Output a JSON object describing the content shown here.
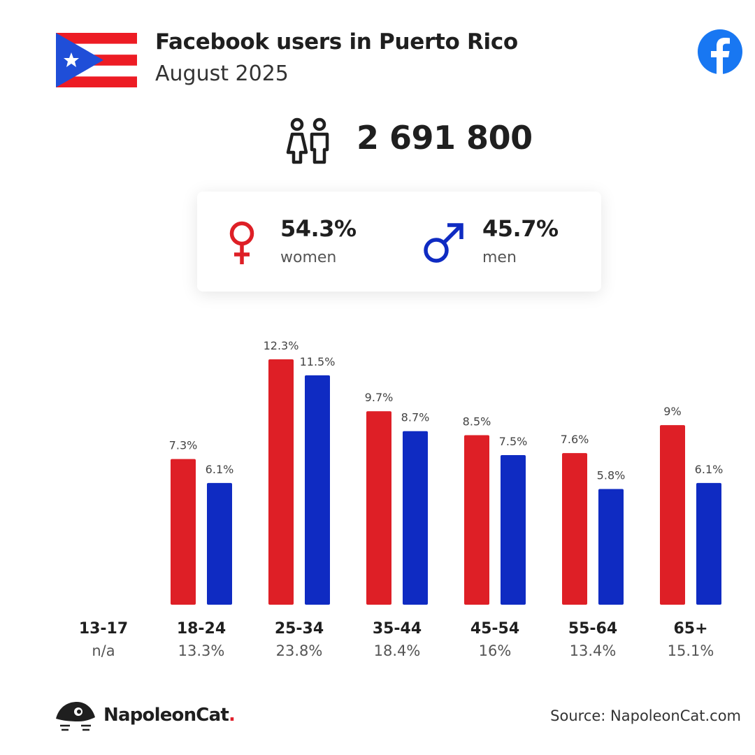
{
  "header": {
    "title": "Facebook users in Puerto Rico",
    "subtitle": "August 2025"
  },
  "total_users": "2 691 800",
  "gender": {
    "women_pct": "54.3%",
    "women_label": "women",
    "men_pct": "45.7%",
    "men_label": "men"
  },
  "colors": {
    "women": "#de1f26",
    "men": "#0f2bc2",
    "facebook": "#1877f2"
  },
  "icons": [
    "puerto-rico-flag-icon",
    "facebook-icon",
    "users-icon",
    "female-symbol-icon",
    "male-symbol-icon",
    "napoleoncat-logo-icon"
  ],
  "chart_data": {
    "type": "bar",
    "categories": [
      "13-17",
      "18-24",
      "25-34",
      "35-44",
      "45-54",
      "55-64",
      "65+"
    ],
    "category_totals": [
      "n/a",
      "13.3%",
      "23.8%",
      "18.4%",
      "16%",
      "13.4%",
      "15.1%"
    ],
    "series": [
      {
        "values": [
          null,
          7.3,
          12.3,
          9.7,
          8.5,
          7.6,
          9.0
        ],
        "labels": [
          "",
          "7.3%",
          "12.3%",
          "9.7%",
          "8.5%",
          "7.6%",
          "9%"
        ]
      },
      {
        "values": [
          null,
          6.1,
          11.5,
          8.7,
          7.5,
          5.8,
          6.1
        ],
        "labels": [
          "",
          "6.1%",
          "11.5%",
          "8.7%",
          "7.5%",
          "5.8%",
          "6.1%"
        ]
      }
    ],
    "ylim": [
      0,
      12.3
    ],
    "grid": false
  },
  "footer": {
    "brand": "NapoleonCat",
    "brand_dot": ".",
    "source": "Source: NapoleonCat.com"
  }
}
